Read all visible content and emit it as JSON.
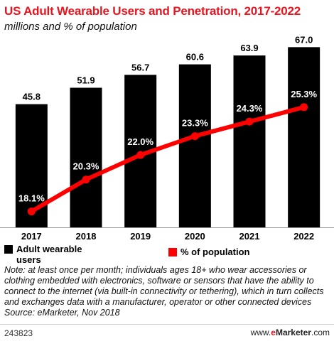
{
  "header": {
    "title": "US Adult Wearable Users and Penetration, 2017-2022",
    "subtitle": "millions and % of population"
  },
  "chart_data": {
    "type": "bar",
    "categories": [
      "2017",
      "2018",
      "2019",
      "2020",
      "2021",
      "2022"
    ],
    "series": [
      {
        "name": "Adult wearable users",
        "type": "bar",
        "color": "#000000",
        "values": [
          45.8,
          51.9,
          56.7,
          60.6,
          63.9,
          67.0
        ],
        "labels": [
          "45.8",
          "51.9",
          "56.7",
          "60.6",
          "63.9",
          "67.0"
        ]
      },
      {
        "name": "% of population",
        "type": "line",
        "color": "#ff0000",
        "values": [
          18.1,
          20.3,
          22.0,
          23.3,
          24.3,
          25.3
        ],
        "labels": [
          "18.1%",
          "20.3%",
          "22.0%",
          "23.3%",
          "24.3%",
          "25.3%"
        ]
      }
    ],
    "ylim_bars": [
      0,
      70
    ],
    "ylim_line": [
      17,
      30
    ],
    "legend": [
      "Adult wearable users",
      "% of population"
    ],
    "legend_position": "bottom",
    "grid": false
  },
  "legend": {
    "bar_label": "Adult wearable users",
    "line_label": "% of population"
  },
  "note": "Note: at least once per month; individuals ages 18+ who wear accessories or clothing embedded with electronics, software or sensors that have the ability to connect to the internet (via built-in connectivity or tethering), which in turn collects and exchanges data with a manufacturer, operator or other connected devices",
  "source": "Source: eMarketer, Nov 2018",
  "footer": {
    "chart_id": "243823",
    "brand_prefix": "www.",
    "brand_e": "e",
    "brand_name": "Marketer",
    "brand_suffix": ".com"
  }
}
